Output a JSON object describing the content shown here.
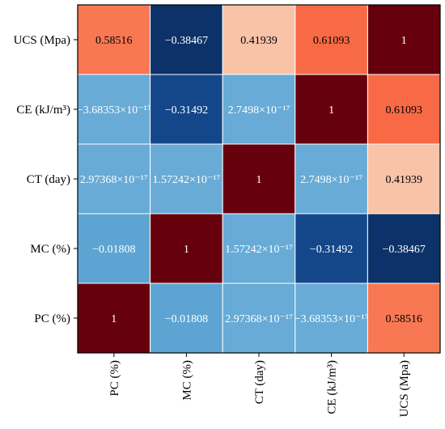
{
  "chart_data": {
    "type": "heatmap",
    "title": "",
    "xlabel": "",
    "ylabel": "",
    "x_categories": [
      "PC (%)",
      "MC (%)",
      "CT (day)",
      "CE (kJ/m³)",
      "UCS (Mpa)"
    ],
    "y_categories_top_to_bottom": [
      "UCS (Mpa)",
      "CE (kJ/m³)",
      "CT (day)",
      "MC (%)",
      "PC (%)"
    ],
    "values_top_to_bottom": [
      [
        0.58516,
        -0.38467,
        0.41939,
        0.61093,
        1
      ],
      [
        -3.68353e-17,
        -0.31492,
        2.7498e-17,
        1,
        0.61093
      ],
      [
        2.97368e-17,
        1.57242e-17,
        1,
        2.7498e-17,
        0.41939
      ],
      [
        -0.01808,
        1,
        1.57242e-17,
        -0.31492,
        -0.38467
      ],
      [
        1,
        -0.01808,
        2.97368e-17,
        -3.68353e-17,
        0.58516
      ]
    ],
    "labels_top_to_bottom": [
      [
        "0.58516",
        "−0.38467",
        "0.41939",
        "0.61093",
        "1"
      ],
      [
        "−3.68353×10⁻¹⁷",
        "−0.31492",
        "2.7498×10⁻¹⁷",
        "1",
        "0.61093"
      ],
      [
        "2.97368×10⁻¹⁷",
        "1.57242×10⁻¹⁷",
        "1",
        "2.7498×10⁻¹⁷",
        "0.41939"
      ],
      [
        "−0.01808",
        "1",
        "1.57242×10⁻¹⁷",
        "−0.31492",
        "−0.38467"
      ],
      [
        "1",
        "−0.01808",
        "2.97368×10⁻¹⁷",
        "−3.68353×10⁻¹⁷",
        "0.58516"
      ]
    ],
    "colormap": "RdBu_r",
    "color_range": [
      -0.4,
      1
    ],
    "colorbar": false,
    "grid": true
  }
}
